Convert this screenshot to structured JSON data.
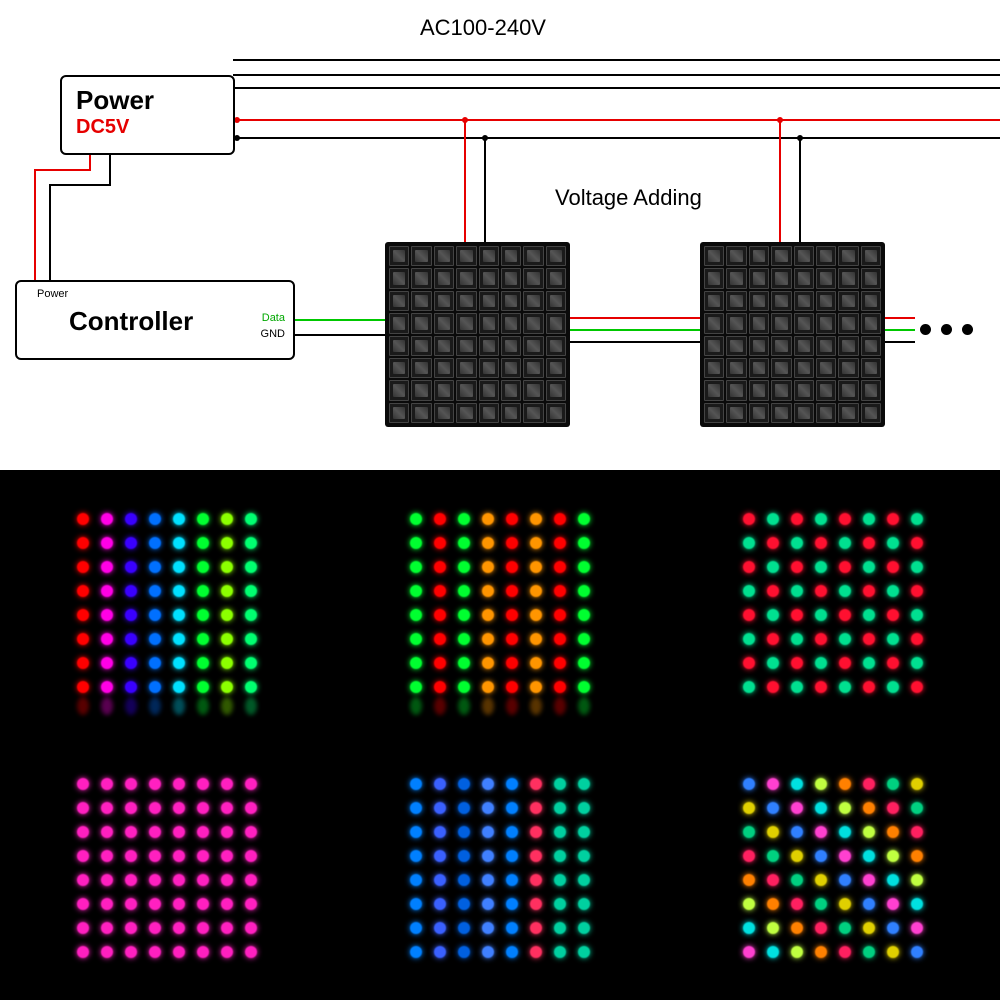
{
  "labels": {
    "power_main": "Power",
    "power_sub": "DC5V",
    "controller_main": "Controller",
    "controller_power": "Power",
    "controller_data": "Data",
    "controller_gnd": "GND",
    "ac": "AC100-240V",
    "voltage_adding": "Voltage Adding"
  },
  "wires": {
    "red": "#e60000",
    "black": "#000000",
    "green": "#00c800"
  },
  "diagram": {
    "box_border": "#000000",
    "stroke_width": 2
  },
  "gallery": {
    "grid_size": 8,
    "background": "#000000",
    "panels": [
      {
        "type": "columns",
        "colors": [
          "#ff0000",
          "#ff00e6",
          "#3a00ff",
          "#0070ff",
          "#00e0ff",
          "#00ff30",
          "#8cff00",
          "#00ff70"
        ],
        "show_reflection": true
      },
      {
        "type": "columns",
        "colors": [
          "#00ff30",
          "#ff0000",
          "#00ff30",
          "#ff9500",
          "#ff0000",
          "#ff9500",
          "#ff0000",
          "#00ff30"
        ],
        "show_reflection": true
      },
      {
        "type": "alternating",
        "colors": [
          "#ff1030",
          "#00e090"
        ],
        "show_reflection": false
      },
      {
        "type": "solid",
        "color": "#ff20c0",
        "show_reflection": false
      },
      {
        "type": "columns",
        "colors": [
          "#0080ff",
          "#3a60ff",
          "#0060e0",
          "#4080ff",
          "#0080ff",
          "#ff3060",
          "#00d0a0",
          "#00d0a0"
        ],
        "show_reflection": false
      },
      {
        "type": "random",
        "palette": [
          "#ff2060",
          "#00d080",
          "#e0d000",
          "#3080ff",
          "#ff40d0",
          "#00e0e0",
          "#c0ff40",
          "#ff8000"
        ],
        "show_reflection": false
      }
    ]
  }
}
